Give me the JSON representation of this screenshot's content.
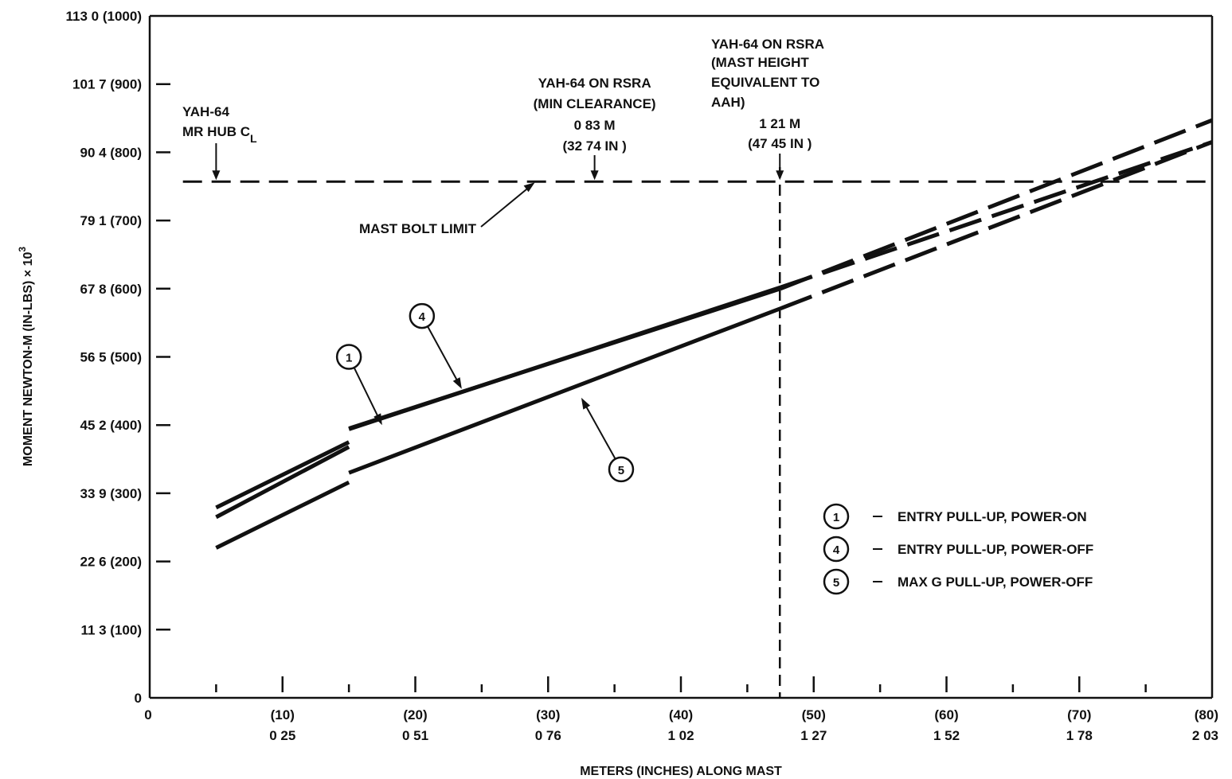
{
  "chart_data": {
    "type": "line",
    "title": "",
    "xlabel": "METERS (INCHES) ALONG MAST",
    "ylabel": "MOMENT NEWTON-M (IN-LBS) × 10",
    "ylabel_exp": "3",
    "xlim": [
      0,
      80
    ],
    "ylim": [
      0,
      1000
    ],
    "grid": false,
    "legend_position": "bottom-right",
    "x_ticks": [
      {
        "value": 0,
        "label_in": "0",
        "label_m": ""
      },
      {
        "value": 10,
        "label_in": "(10)",
        "label_m": "0 25"
      },
      {
        "value": 20,
        "label_in": "(20)",
        "label_m": "0 51"
      },
      {
        "value": 30,
        "label_in": "(30)",
        "label_m": "0 76"
      },
      {
        "value": 40,
        "label_in": "(40)",
        "label_m": "1 02"
      },
      {
        "value": 50,
        "label_in": "(50)",
        "label_m": "1 27"
      },
      {
        "value": 60,
        "label_in": "(60)",
        "label_m": "1 52"
      },
      {
        "value": 70,
        "label_in": "(70)",
        "label_m": "1 78"
      },
      {
        "value": 80,
        "label_in": "(80)",
        "label_m": "2 03"
      }
    ],
    "x_minor_ticks": [
      5,
      15,
      25,
      35,
      45,
      55,
      65,
      75
    ],
    "y_ticks": [
      {
        "value": 0,
        "label": "0"
      },
      {
        "value": 100,
        "label": "11 3 (100)"
      },
      {
        "value": 200,
        "label": "22 6 (200)"
      },
      {
        "value": 300,
        "label": "33 9 (300)"
      },
      {
        "value": 400,
        "label": "45 2 (400)"
      },
      {
        "value": 500,
        "label": "56 5 (500)"
      },
      {
        "value": 600,
        "label": "67 8 (600)"
      },
      {
        "value": 700,
        "label": "79 1 (700)"
      },
      {
        "value": 800,
        "label": "90 4 (800)"
      },
      {
        "value": 900,
        "label": "101 7 (900)"
      },
      {
        "value": 1000,
        "label": "113 0 (1000)"
      }
    ],
    "series": [
      {
        "name": "ENTRY PULL-UP, POWER-ON",
        "number": "1",
        "segments": [
          {
            "style": "solid",
            "points": [
              [
                5,
                265
              ],
              [
                15,
                368
              ]
            ]
          },
          {
            "style": "solid",
            "points": [
              [
                15,
                394
              ],
              [
                47.5,
                602
              ]
            ]
          },
          {
            "style": "dashed",
            "points": [
              [
                47.5,
                602
              ],
              [
                80,
                815
              ]
            ]
          }
        ]
      },
      {
        "name": "ENTRY PULL-UP, POWER-OFF",
        "number": "4",
        "segments": [
          {
            "style": "solid",
            "points": [
              [
                5,
                279
              ],
              [
                15,
                375
              ]
            ]
          },
          {
            "style": "solid",
            "points": [
              [
                15,
                395
              ],
              [
                47.5,
                600
              ]
            ]
          },
          {
            "style": "dashed",
            "points": [
              [
                47.5,
                600
              ],
              [
                80,
                847
              ]
            ]
          }
        ]
      },
      {
        "name": "MAX G PULL-UP, POWER-OFF",
        "number": "5",
        "segments": [
          {
            "style": "solid",
            "points": [
              [
                5,
                220
              ],
              [
                15,
                316
              ]
            ]
          },
          {
            "style": "solid",
            "points": [
              [
                15,
                330
              ],
              [
                47.5,
                571
              ]
            ]
          },
          {
            "style": "dashed",
            "points": [
              [
                47.5,
                571
              ],
              [
                80,
                815
              ]
            ]
          }
        ]
      }
    ],
    "reference_lines": {
      "mast_bolt_limit": {
        "y": 757,
        "x_start": 2.5,
        "x_end": 80,
        "style": "dashed"
      },
      "vertical_aah": {
        "x": 47.45,
        "style": "dashed"
      }
    },
    "annotations": {
      "hub": {
        "lines": [
          "YAH-64",
          "MR HUB C"
        ],
        "subscript": "L",
        "x": 5
      },
      "min_clearance": {
        "lines": [
          "YAH-64 ON RSRA",
          "(MIN CLEARANCE)",
          "0 83 M",
          "(32 74 IN )"
        ],
        "x": 33.5
      },
      "aah": {
        "lines": [
          "YAH-64 ON RSRA",
          "(MAST HEIGHT",
          "EQUIVALENT TO",
          "AAH)",
          "1 21 M",
          "(47 45 IN )"
        ],
        "x": 47.45
      },
      "mast_bolt_limit": {
        "text": "MAST BOLT LIMIT",
        "x": 29,
        "y": 757
      }
    },
    "markers": [
      {
        "number": "1",
        "x": 15,
        "y": 500,
        "target_x": 17.5,
        "target_y": 400
      },
      {
        "number": "4",
        "x": 20.5,
        "y": 560,
        "target_x": 23.5,
        "target_y": 453
      },
      {
        "number": "5",
        "x": 35.5,
        "y": 335,
        "target_x": 32.5,
        "target_y": 440
      }
    ]
  }
}
